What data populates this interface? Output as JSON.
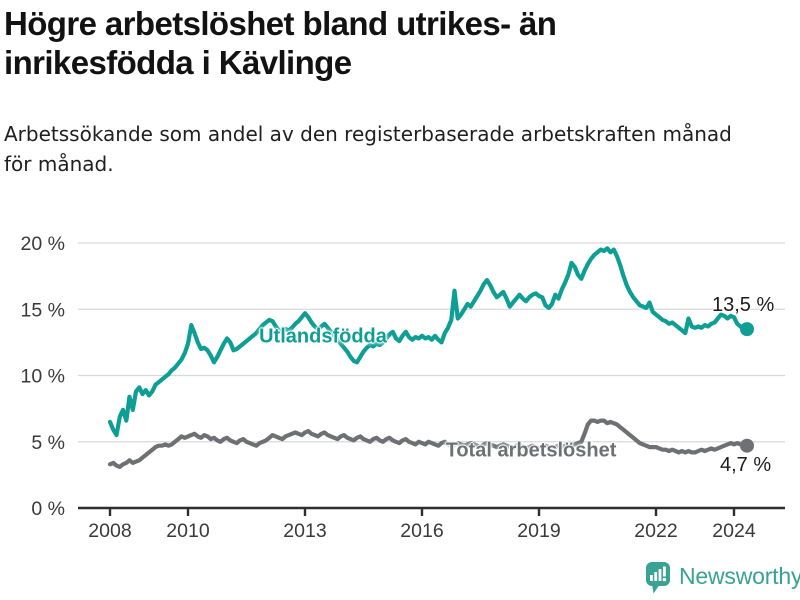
{
  "header": {
    "title": "Högre arbetslöshet bland utrikes- än\ninrikesfödda i Kävlinge",
    "subtitle": "Arbetssökande som andel av den registerbaserade arbetskraften månad\nför månad."
  },
  "footer": {
    "brand": "Newsworthy",
    "brand_icon": "bar-chart-speech-bubble",
    "brand_color": "#38A293"
  },
  "chart_data": {
    "type": "line",
    "title": "Högre arbetslöshet bland utrikes- än inrikesfödda i Kävlinge",
    "subtitle": "Arbetssökande som andel av den registerbaserade arbetskraften månad för månad.",
    "x_unit": "month",
    "x_range": [
      "2008-01",
      "2024-05"
    ],
    "x_tick_years": [
      2008,
      2010,
      2013,
      2016,
      2019,
      2022,
      2024
    ],
    "y_ticks": [
      {
        "value": 0,
        "label": "0 %"
      },
      {
        "value": 5,
        "label": "5 %"
      },
      {
        "value": 10,
        "label": "10 %"
      },
      {
        "value": 15,
        "label": "15 %"
      },
      {
        "value": 20,
        "label": "20 %"
      }
    ],
    "ylim": [
      0,
      21
    ],
    "grid": true,
    "legend": "inline-labels",
    "series": [
      {
        "name": "Utlandsfödda",
        "label": "Utlandsfödda",
        "color": "#0D9E94",
        "end_value": 13.5,
        "end_label": "13,5 %",
        "values": [
          6.5,
          5.9,
          5.5,
          6.9,
          7.4,
          6.6,
          8.4,
          7.4,
          8.8,
          9.1,
          8.6,
          8.9,
          8.5,
          8.8,
          9.3,
          9.5,
          9.7,
          9.9,
          10.1,
          10.4,
          10.6,
          10.9,
          11.2,
          11.7,
          12.4,
          13.8,
          13.2,
          12.5,
          12.0,
          12.1,
          11.9,
          11.5,
          11.0,
          11.4,
          11.9,
          12.4,
          12.8,
          12.5,
          11.9,
          12.0,
          12.2,
          12.4,
          12.6,
          12.8,
          13.0,
          13.2,
          13.5,
          13.8,
          14.0,
          14.2,
          14.1,
          13.7,
          13.4,
          13.3,
          13.5,
          13.4,
          13.6,
          13.9,
          14.1,
          14.4,
          14.7,
          14.4,
          14.0,
          13.7,
          13.5,
          13.7,
          13.9,
          13.6,
          13.3,
          13.0,
          12.7,
          12.4,
          12.1,
          11.8,
          11.4,
          11.1,
          11.0,
          11.4,
          11.8,
          12.1,
          12.3,
          12.2,
          12.4,
          12.3,
          12.5,
          12.8,
          13.1,
          13.3,
          12.8,
          12.6,
          13.0,
          13.3,
          12.9,
          12.7,
          12.9,
          12.8,
          13.0,
          12.8,
          12.9,
          12.7,
          13.0,
          12.7,
          12.5,
          13.2,
          13.6,
          14.2,
          16.4,
          14.3,
          14.6,
          15.0,
          15.4,
          15.2,
          15.6,
          16.0,
          16.4,
          16.9,
          17.2,
          16.8,
          16.3,
          15.9,
          16.1,
          16.3,
          15.8,
          15.2,
          15.5,
          15.8,
          16.1,
          15.8,
          15.6,
          15.9,
          16.1,
          16.2,
          16.0,
          15.9,
          15.3,
          15.1,
          15.4,
          16.1,
          15.8,
          16.5,
          17.0,
          17.6,
          18.5,
          18.2,
          17.6,
          17.3,
          17.9,
          18.4,
          18.8,
          19.1,
          19.3,
          19.5,
          19.4,
          19.6,
          19.3,
          19.5,
          19.0,
          18.3,
          17.5,
          16.8,
          16.3,
          15.9,
          15.6,
          15.3,
          15.2,
          15.1,
          15.5,
          14.8,
          14.6,
          14.4,
          14.2,
          14.1,
          13.9,
          14.0,
          13.8,
          13.6,
          13.4,
          13.2,
          14.3,
          13.7,
          13.6,
          13.7,
          13.6,
          13.8,
          13.7,
          13.9,
          14.0,
          14.3,
          14.6,
          14.5,
          14.3,
          14.5,
          14.4,
          13.9,
          13.7,
          13.6,
          13.5
        ]
      },
      {
        "name": "Total arbetslöshet",
        "label": "Total arbetslöshet",
        "color": "#6E7073",
        "end_value": 4.7,
        "end_label": "4,7 %",
        "values": [
          3.3,
          3.4,
          3.2,
          3.1,
          3.3,
          3.4,
          3.6,
          3.4,
          3.5,
          3.6,
          3.8,
          4.0,
          4.2,
          4.4,
          4.6,
          4.7,
          4.7,
          4.8,
          4.7,
          4.8,
          5.0,
          5.2,
          5.4,
          5.3,
          5.4,
          5.5,
          5.6,
          5.4,
          5.3,
          5.5,
          5.4,
          5.2,
          5.3,
          5.1,
          5.0,
          5.2,
          5.3,
          5.1,
          5.0,
          4.9,
          5.1,
          5.2,
          5.0,
          4.9,
          4.8,
          4.7,
          4.9,
          5.0,
          5.1,
          5.3,
          5.5,
          5.4,
          5.3,
          5.2,
          5.4,
          5.5,
          5.6,
          5.7,
          5.6,
          5.5,
          5.7,
          5.8,
          5.6,
          5.5,
          5.4,
          5.6,
          5.7,
          5.5,
          5.4,
          5.3,
          5.2,
          5.4,
          5.5,
          5.3,
          5.2,
          5.1,
          5.3,
          5.4,
          5.2,
          5.1,
          5.0,
          5.2,
          5.3,
          5.1,
          5.0,
          5.2,
          5.3,
          5.1,
          5.0,
          4.9,
          5.1,
          5.2,
          5.0,
          4.9,
          4.8,
          5.0,
          4.9,
          4.8,
          5.0,
          4.9,
          4.8,
          4.7,
          4.9,
          5.0,
          4.8,
          4.7,
          4.8,
          4.9,
          4.8,
          4.7,
          4.8,
          4.9,
          4.8,
          4.7,
          4.6,
          4.8,
          4.9,
          4.8,
          4.7,
          4.6,
          4.7,
          4.8,
          4.7,
          4.6,
          4.5,
          4.7,
          4.8,
          4.6,
          4.5,
          4.6,
          4.7,
          4.6,
          4.5,
          4.6,
          4.7,
          4.6,
          4.5,
          4.6,
          4.7,
          4.6,
          4.7,
          4.8,
          4.7,
          4.8,
          4.9,
          5.0,
          5.6,
          6.3,
          6.6,
          6.6,
          6.5,
          6.6,
          6.6,
          6.4,
          6.5,
          6.4,
          6.3,
          6.1,
          5.9,
          5.7,
          5.5,
          5.3,
          5.1,
          4.9,
          4.8,
          4.7,
          4.6,
          4.6,
          4.6,
          4.5,
          4.4,
          4.4,
          4.3,
          4.4,
          4.3,
          4.2,
          4.3,
          4.2,
          4.3,
          4.2,
          4.2,
          4.3,
          4.4,
          4.3,
          4.4,
          4.5,
          4.4,
          4.5,
          4.6,
          4.7,
          4.8,
          4.9,
          4.8,
          4.9,
          4.8,
          4.7,
          4.7
        ]
      }
    ],
    "axis_colors": {
      "grid": "#d9d9d9",
      "axis": "#2e2e2e",
      "tick_text": "#3a3a3a"
    }
  }
}
